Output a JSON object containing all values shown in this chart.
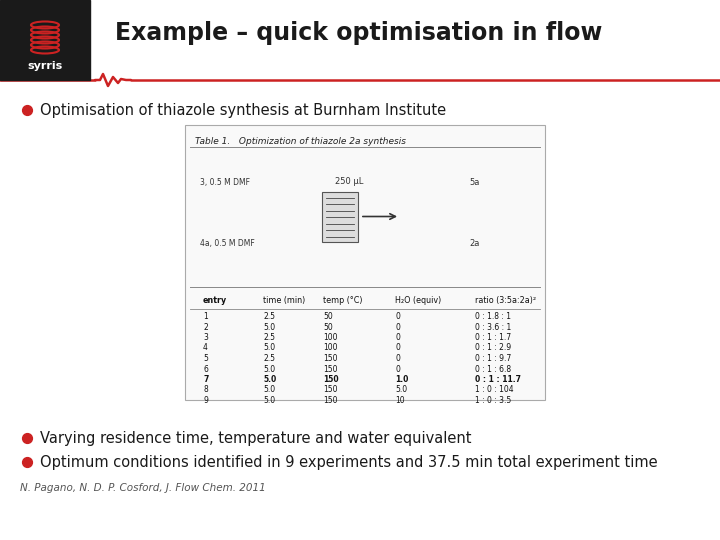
{
  "title": "Example – quick optimisation in flow",
  "bullet1": "Optimisation of thiazole synthesis at Burnham Institute",
  "bullet2": "Varying residence time, temperature and water equivalent",
  "bullet3": "Optimum conditions identified in 9 experiments and 37.5 min total experiment time",
  "citation": "N. Pagano, N. D. P. Cosford, J. Flow Chem. 2011",
  "bg_color": "#ffffff",
  "title_color": "#1a1a1a",
  "bullet_color": "#1a1a1a",
  "citation_color": "#555555",
  "header_bg": "#1a1a1a",
  "red_line_color": "#cc2222",
  "bullet_dot_color": "#cc2222",
  "table_title": "Table 1.   Optimization of thiazole 2a synthesis",
  "table_header": [
    "entry",
    "time (min)",
    "temp (°C)",
    "H₂O (equiv)",
    "ratio (3:5a:2a)²"
  ],
  "table_data": [
    [
      "1",
      "2.5",
      "50",
      "0",
      "0 : 1.8 : 1"
    ],
    [
      "2",
      "5.0",
      "50",
      "0",
      "0 : 3.6 : 1"
    ],
    [
      "3",
      "2.5",
      "100",
      "0",
      "0 : 1 : 1.7"
    ],
    [
      "4",
      "5.0",
      "100",
      "0",
      "0 : 1 : 2.9"
    ],
    [
      "5",
      "2.5",
      "150",
      "0",
      "0 : 1 : 9.7"
    ],
    [
      "6",
      "5.0",
      "150",
      "0",
      "0 : 1 : 6.8"
    ],
    [
      "7",
      "5.0",
      "150",
      "1.0",
      "0 : 1 : 11.7"
    ],
    [
      "8",
      "5.0",
      "150",
      "5.0",
      "1 : 0 : 104"
    ],
    [
      "9",
      "5.0",
      "150",
      "10",
      "1 : 0 : 3.5"
    ]
  ],
  "logo_text": "syrris"
}
